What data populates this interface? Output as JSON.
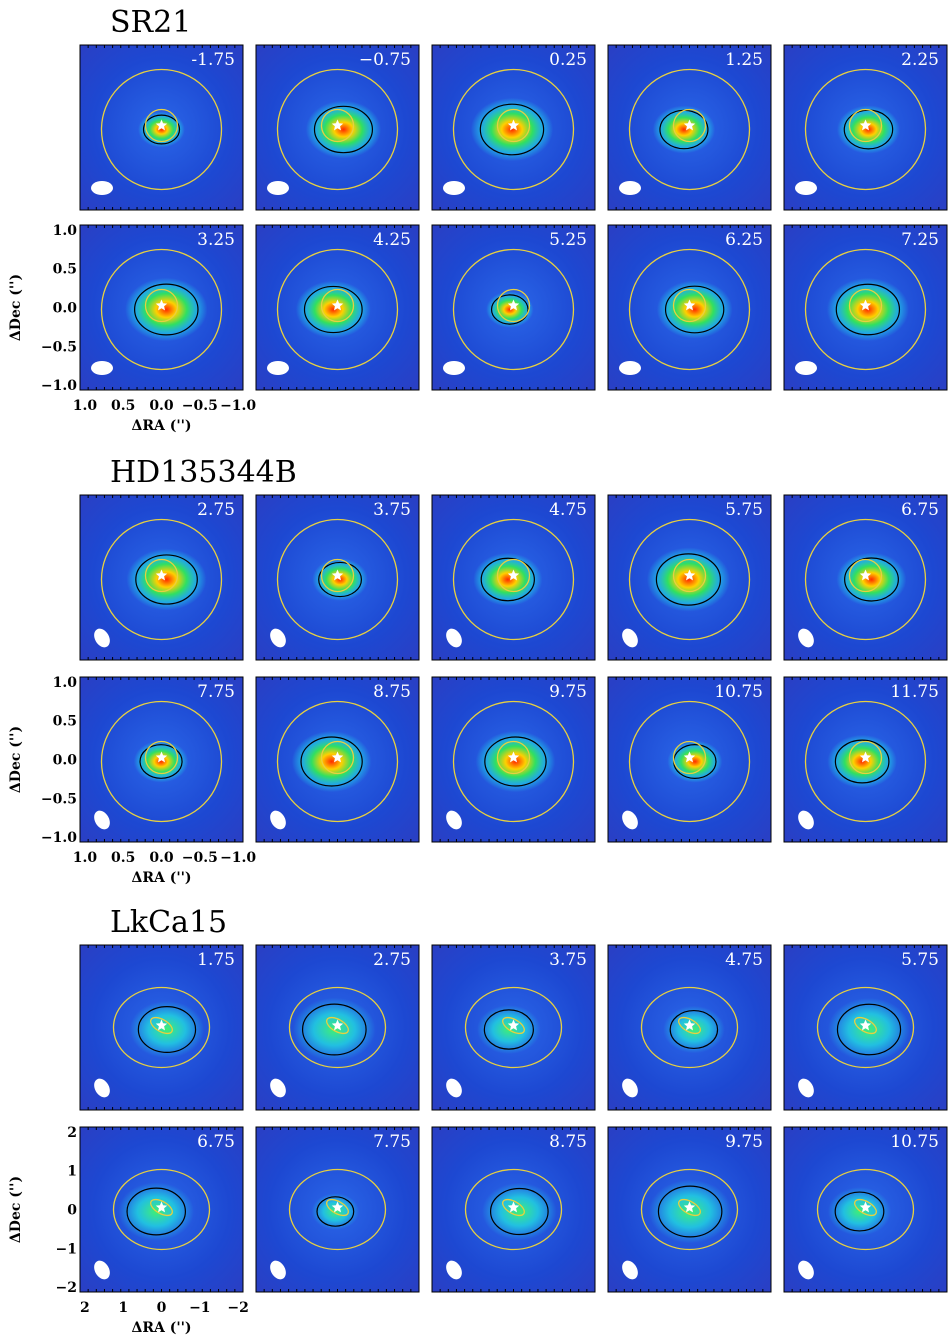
{
  "groups": [
    {
      "title": "SR21",
      "panels": [
        "-1.75",
        "−0.75",
        "0.25",
        "1.25",
        "2.25",
        "3.25",
        "4.25",
        "5.25",
        "6.25",
        "7.25"
      ],
      "yticks": [
        "1.0",
        "0.5",
        "0.0",
        "−0.5",
        "−1.0"
      ],
      "xticks": [
        "1.0",
        "0.5",
        "0.0",
        "−0.5",
        "−1.0"
      ],
      "ylabel": "ΔDec ('')",
      "xlabel": "ΔRA ('')"
    },
    {
      "title": "HD135344B",
      "panels": [
        "2.75",
        "3.75",
        "4.75",
        "5.75",
        "6.75",
        "7.75",
        "8.75",
        "9.75",
        "10.75",
        "11.75"
      ],
      "yticks": [
        "1.0",
        "0.5",
        "0.0",
        "−0.5",
        "−1.0"
      ],
      "xticks": [
        "1.0",
        "0.5",
        "0.0",
        "−0.5",
        "−1.0"
      ],
      "ylabel": "ΔDec ('')",
      "xlabel": "ΔRA ('')"
    },
    {
      "title": "LkCa15",
      "panels": [
        "1.75",
        "2.75",
        "3.75",
        "4.75",
        "5.75",
        "6.75",
        "7.75",
        "8.75",
        "9.75",
        "10.75"
      ],
      "yticks": [
        "2",
        "1",
        "0",
        "−1",
        "−2"
      ],
      "xticks": [
        "2",
        "1",
        "0",
        "−1",
        "−2"
      ],
      "ylabel": "ΔDec ('')",
      "xlabel": "ΔRA ('')"
    }
  ]
}
